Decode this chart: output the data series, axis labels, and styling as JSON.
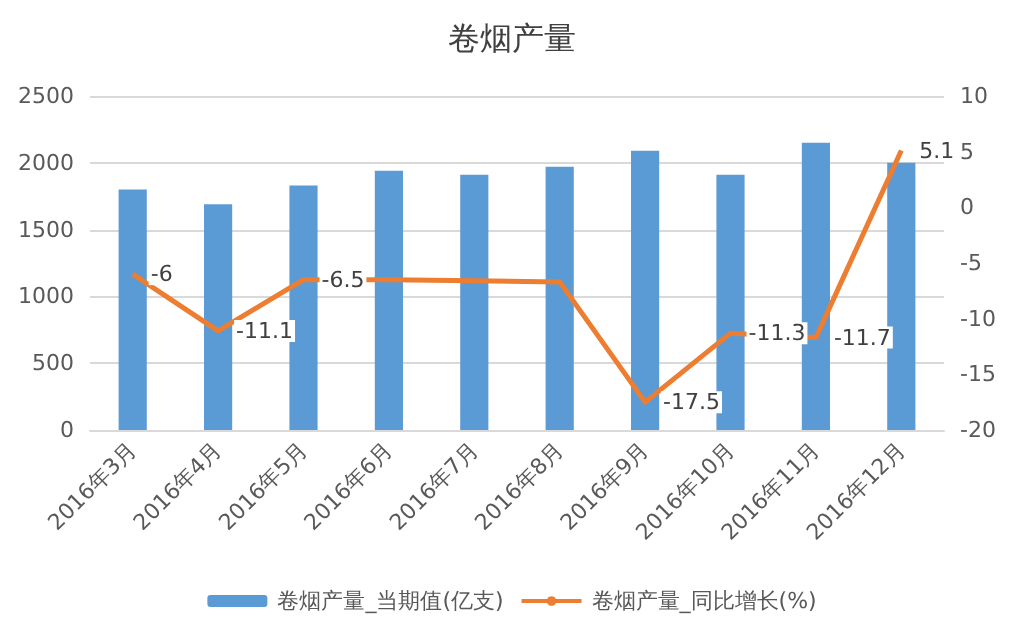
{
  "chart_data": {
    "type": "bar",
    "title": "卷烟产量",
    "categories": [
      "2016年3月",
      "2016年4月",
      "2016年5月",
      "2016年6月",
      "2016年7月",
      "2016年8月",
      "2016年9月",
      "2016年10月",
      "2016年11月",
      "2016年12月"
    ],
    "series": [
      {
        "name": "卷烟产量_当期值(亿支)",
        "color": "#5b9bd5",
        "values": [
          1800,
          1690,
          1830,
          1940,
          1910,
          1970,
          2090,
          1910,
          2150,
          2000
        ]
      },
      {
        "name": "卷烟产量_同比增长(%)",
        "type": "line",
        "axis": "y2",
        "color": "#ed7d31",
        "marker": "none",
        "values": [
          -6,
          -11.1,
          -6.5,
          -6.5,
          -6.6,
          -6.7,
          -17.5,
          -11.3,
          -11.7,
          5.1
        ],
        "value_labels": [
          "-6",
          "-11.1",
          "-6.5",
          null,
          null,
          null,
          "-17.5",
          "-11.3",
          "-11.7",
          "5.1"
        ]
      }
    ],
    "ylim": [
      0,
      2500
    ],
    "yticks": [
      0,
      500,
      1000,
      1500,
      2000,
      2500
    ],
    "y2lim": [
      -20,
      10
    ],
    "y2ticks": [
      -20,
      -15,
      -10,
      -5,
      0,
      5,
      10
    ],
    "grid": "y",
    "legend": "bottom"
  }
}
